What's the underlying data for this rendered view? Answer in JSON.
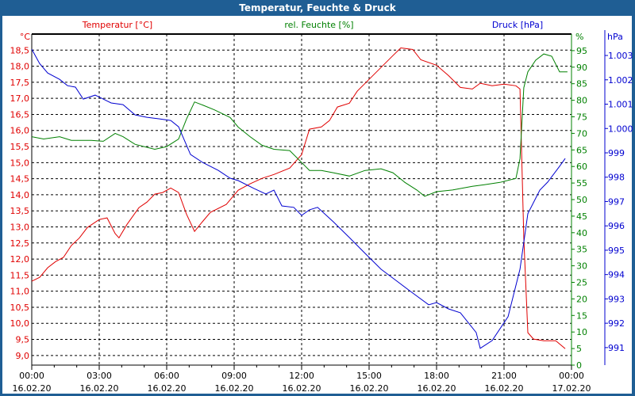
{
  "window": {
    "title": "Temperatur, Feuchte & Druck"
  },
  "chart_data": {
    "type": "line",
    "title": "Temperatur, Feuchte & Druck",
    "x_ticks": [
      {
        "hour": 0,
        "time": "00:00",
        "date": "16.02.20"
      },
      {
        "hour": 3,
        "time": "03:00",
        "date": "16.02.20"
      },
      {
        "hour": 6,
        "time": "06:00",
        "date": "16.02.20"
      },
      {
        "hour": 9,
        "time": "09:00",
        "date": "16.02.20"
      },
      {
        "hour": 12,
        "time": "12:00",
        "date": "16.02.20"
      },
      {
        "hour": 15,
        "time": "15:00",
        "date": "16.02.20"
      },
      {
        "hour": 18,
        "time": "18:00",
        "date": "16.02.20"
      },
      {
        "hour": 21,
        "time": "21:00",
        "date": "16.02.20"
      },
      {
        "hour": 24,
        "time": "00:00",
        "date": "17.02.20"
      }
    ],
    "xlim": [
      0,
      24
    ],
    "axes": {
      "temp": {
        "label": "Temperatur [°C]",
        "unit": "°C",
        "ylim": [
          8.7,
          19.0
        ],
        "ticks": [
          "9,0",
          "9,5",
          "10,0",
          "10,5",
          "11,0",
          "11,5",
          "12,0",
          "12,5",
          "13,0",
          "13,5",
          "14,0",
          "14,5",
          "15,0",
          "15,5",
          "16,0",
          "16,5",
          "17,0",
          "17,5",
          "18,0",
          "18,5"
        ],
        "tick_values": [
          9,
          9.5,
          10,
          10.5,
          11,
          11.5,
          12,
          12.5,
          13,
          13.5,
          14,
          14.5,
          15,
          15.5,
          16,
          16.5,
          17,
          17.5,
          18,
          18.5
        ],
        "color": "#e00000"
      },
      "hum": {
        "label": "rel. Feuchte [%]",
        "unit": "%",
        "ylim": [
          0,
          100
        ],
        "ticks": [
          "0",
          "5",
          "10",
          "15",
          "20",
          "25",
          "30",
          "35",
          "40",
          "45",
          "50",
          "55",
          "60",
          "65",
          "70",
          "75",
          "80",
          "85",
          "90",
          "95"
        ],
        "tick_values": [
          0,
          5,
          10,
          15,
          20,
          25,
          30,
          35,
          40,
          45,
          50,
          55,
          60,
          65,
          70,
          75,
          80,
          85,
          90,
          95
        ],
        "color": "#008000"
      },
      "press": {
        "label": "Druck [hPa]",
        "unit": "hPa",
        "ylim": [
          990.28,
          1003.88
        ],
        "ticks": [
          "991",
          "992",
          "993",
          "994",
          "995",
          "996",
          "997",
          "998",
          "999",
          "1.000",
          "1.001",
          "1.002",
          "1.003"
        ],
        "tick_values": [
          991,
          992,
          993,
          994,
          995,
          996,
          997,
          998,
          999,
          1000,
          1001,
          1002,
          1003
        ],
        "color": "#0000d0"
      }
    },
    "series": [
      {
        "name": "Temperatur [°C]",
        "axis": "temp",
        "color": "#e00000",
        "points": [
          [
            0,
            11.31
          ],
          [
            0.35,
            11.43
          ],
          [
            0.71,
            11.73
          ],
          [
            1.06,
            11.92
          ],
          [
            1.41,
            12.05
          ],
          [
            1.76,
            12.42
          ],
          [
            2.12,
            12.66
          ],
          [
            2.47,
            12.98
          ],
          [
            3.0,
            13.23
          ],
          [
            3.35,
            13.28
          ],
          [
            3.71,
            12.79
          ],
          [
            3.88,
            12.66
          ],
          [
            4.24,
            13.08
          ],
          [
            4.77,
            13.6
          ],
          [
            5.12,
            13.77
          ],
          [
            5.47,
            14.02
          ],
          [
            5.82,
            14.07
          ],
          [
            6.18,
            14.21
          ],
          [
            6.53,
            14.07
          ],
          [
            6.88,
            13.4
          ],
          [
            7.24,
            12.86
          ],
          [
            7.59,
            13.16
          ],
          [
            7.94,
            13.45
          ],
          [
            8.65,
            13.7
          ],
          [
            9.18,
            14.14
          ],
          [
            9.71,
            14.34
          ],
          [
            10.24,
            14.51
          ],
          [
            10.77,
            14.63
          ],
          [
            11.47,
            14.83
          ],
          [
            12.0,
            15.25
          ],
          [
            12.35,
            16.04
          ],
          [
            12.88,
            16.11
          ],
          [
            13.24,
            16.31
          ],
          [
            13.59,
            16.73
          ],
          [
            14.12,
            16.85
          ],
          [
            14.47,
            17.22
          ],
          [
            15.0,
            17.59
          ],
          [
            15.53,
            17.96
          ],
          [
            16.06,
            18.33
          ],
          [
            16.41,
            18.57
          ],
          [
            16.94,
            18.52
          ],
          [
            17.3,
            18.2
          ],
          [
            18.0,
            18.03
          ],
          [
            18.53,
            17.71
          ],
          [
            19.06,
            17.34
          ],
          [
            19.59,
            17.29
          ],
          [
            19.94,
            17.47
          ],
          [
            20.47,
            17.39
          ],
          [
            21.0,
            17.44
          ],
          [
            21.53,
            17.39
          ],
          [
            21.71,
            17.29
          ],
          [
            21.88,
            12.66
          ],
          [
            22.06,
            9.71
          ],
          [
            22.31,
            9.51
          ],
          [
            22.77,
            9.46
          ],
          [
            23.3,
            9.46
          ],
          [
            23.72,
            9.21
          ]
        ]
      },
      {
        "name": "rel. Feuchte [%]",
        "axis": "hum",
        "color": "#008000",
        "points": [
          [
            0,
            69.0
          ],
          [
            0.53,
            68.3
          ],
          [
            1.24,
            69.0
          ],
          [
            1.76,
            67.9
          ],
          [
            2.65,
            67.9
          ],
          [
            3.18,
            67.6
          ],
          [
            3.71,
            70.0
          ],
          [
            4.06,
            69.0
          ],
          [
            4.59,
            66.7
          ],
          [
            5.47,
            65.2
          ],
          [
            6.0,
            66.0
          ],
          [
            6.53,
            68.3
          ],
          [
            6.88,
            74.3
          ],
          [
            7.24,
            79.5
          ],
          [
            7.59,
            78.6
          ],
          [
            8.12,
            77.1
          ],
          [
            8.82,
            74.8
          ],
          [
            9.18,
            71.9
          ],
          [
            9.71,
            69.0
          ],
          [
            10.24,
            66.4
          ],
          [
            10.77,
            65.2
          ],
          [
            11.47,
            64.8
          ],
          [
            12.0,
            61.2
          ],
          [
            12.35,
            58.8
          ],
          [
            12.88,
            58.8
          ],
          [
            13.41,
            58.1
          ],
          [
            14.12,
            57.1
          ],
          [
            14.82,
            58.8
          ],
          [
            15.53,
            59.3
          ],
          [
            16.06,
            58.1
          ],
          [
            16.59,
            55.2
          ],
          [
            17.12,
            52.9
          ],
          [
            17.47,
            51.0
          ],
          [
            18.0,
            52.4
          ],
          [
            18.71,
            52.9
          ],
          [
            19.59,
            54.0
          ],
          [
            20.12,
            54.5
          ],
          [
            20.82,
            55.2
          ],
          [
            21.53,
            56.4
          ],
          [
            21.71,
            62.4
          ],
          [
            21.88,
            83.8
          ],
          [
            22.06,
            88.6
          ],
          [
            22.41,
            92.1
          ],
          [
            22.77,
            94.0
          ],
          [
            23.12,
            93.3
          ],
          [
            23.47,
            88.6
          ],
          [
            23.82,
            88.6
          ]
        ]
      },
      {
        "name": "Druck [hPa]",
        "axis": "press",
        "color": "#0000d0",
        "points": [
          [
            0,
            1003.26
          ],
          [
            0.35,
            1002.67
          ],
          [
            0.71,
            1002.28
          ],
          [
            1.24,
            1002.02
          ],
          [
            1.59,
            1001.76
          ],
          [
            1.94,
            1001.7
          ],
          [
            2.29,
            1001.21
          ],
          [
            2.82,
            1001.37
          ],
          [
            3.18,
            1001.21
          ],
          [
            3.53,
            1001.05
          ],
          [
            4.06,
            1000.98
          ],
          [
            4.59,
            1000.56
          ],
          [
            5.12,
            1000.46
          ],
          [
            5.65,
            1000.4
          ],
          [
            6.18,
            1000.33
          ],
          [
            6.53,
            1000.07
          ],
          [
            7.06,
            998.93
          ],
          [
            7.59,
            998.61
          ],
          [
            8.29,
            998.28
          ],
          [
            8.82,
            997.96
          ],
          [
            9.18,
            997.86
          ],
          [
            9.88,
            997.54
          ],
          [
            10.41,
            997.31
          ],
          [
            10.77,
            997.47
          ],
          [
            11.12,
            996.82
          ],
          [
            11.65,
            996.76
          ],
          [
            12.0,
            996.43
          ],
          [
            12.35,
            996.66
          ],
          [
            12.71,
            996.76
          ],
          [
            13.41,
            996.17
          ],
          [
            14.12,
            995.52
          ],
          [
            14.82,
            994.87
          ],
          [
            15.53,
            994.22
          ],
          [
            16.24,
            993.73
          ],
          [
            16.94,
            993.24
          ],
          [
            17.65,
            992.76
          ],
          [
            18.0,
            992.85
          ],
          [
            18.53,
            992.59
          ],
          [
            19.06,
            992.43
          ],
          [
            19.76,
            991.62
          ],
          [
            19.94,
            990.97
          ],
          [
            20.47,
            991.29
          ],
          [
            21.18,
            992.27
          ],
          [
            21.71,
            994.22
          ],
          [
            22.06,
            996.5
          ],
          [
            22.59,
            997.47
          ],
          [
            22.94,
            997.8
          ],
          [
            23.47,
            998.45
          ],
          [
            23.72,
            998.77
          ]
        ]
      }
    ]
  }
}
